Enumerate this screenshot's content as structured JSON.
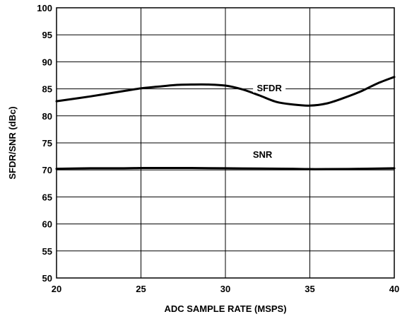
{
  "chart_data": {
    "type": "line",
    "xlabel": "ADC SAMPLE RATE (MSPS)",
    "ylabel": "SFDR/SNR (dBc)",
    "xlim": [
      20,
      40
    ],
    "ylim": [
      50,
      100
    ],
    "xticks": [
      "20",
      "25",
      "30",
      "35",
      "40"
    ],
    "yticks": [
      "50",
      "55",
      "60",
      "65",
      "70",
      "75",
      "80",
      "85",
      "90",
      "95",
      "100"
    ],
    "grid": true,
    "legend": "none",
    "series": [
      {
        "name": "SFDR",
        "x": [
          20,
          22,
          24,
          25,
          26,
          27,
          28,
          29,
          30,
          31,
          32,
          33,
          34,
          35,
          36,
          37,
          38,
          39,
          40
        ],
        "y": [
          82.7,
          83.6,
          84.6,
          85.1,
          85.4,
          85.7,
          85.8,
          85.8,
          85.6,
          84.9,
          83.8,
          82.6,
          82.1,
          81.9,
          82.3,
          83.3,
          84.5,
          86.0,
          87.2
        ]
      },
      {
        "name": "SNR",
        "x": [
          20,
          22,
          24,
          25,
          26,
          28,
          30,
          32,
          34,
          35,
          36,
          38,
          40
        ],
        "y": [
          70.2,
          70.3,
          70.3,
          70.35,
          70.35,
          70.35,
          70.3,
          70.25,
          70.2,
          70.15,
          70.15,
          70.2,
          70.3
        ]
      }
    ],
    "annotations": [
      {
        "text": "SFDR",
        "series": "SFDR"
      },
      {
        "text": "SNR",
        "series": "SNR"
      }
    ]
  }
}
